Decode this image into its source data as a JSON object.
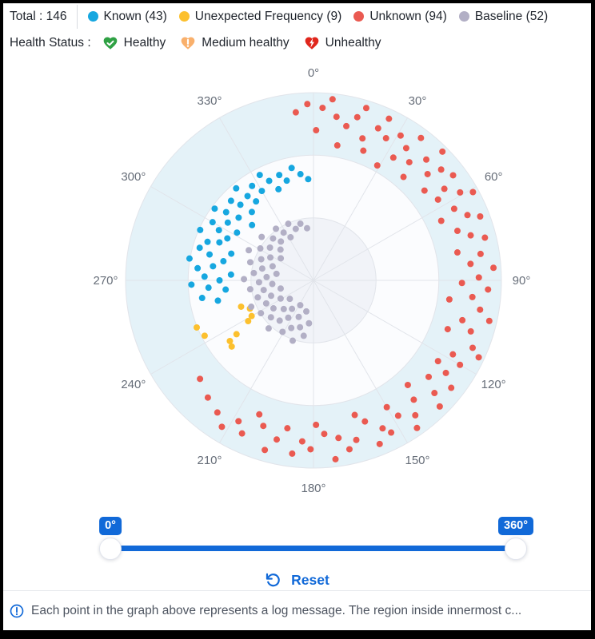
{
  "header": {
    "total_label": "Total : 146",
    "legend": [
      {
        "label": "Known (43)",
        "color": "#16a7e0"
      },
      {
        "label": "Unexpected Frequency (9)",
        "color": "#fcc02e"
      },
      {
        "label": "Unknown (94)",
        "color": "#ea5a51"
      },
      {
        "label": "Baseline (52)",
        "color": "#b2afc5"
      }
    ],
    "health_status_label": "Health Status :",
    "health_items": [
      {
        "label": "Healthy",
        "icon": "heart-check-icon",
        "color": "#2fa144"
      },
      {
        "label": "Medium healthy",
        "icon": "heart-exclamation-icon",
        "color": "#f9b06c"
      },
      {
        "label": "Unhealthy",
        "icon": "heart-bolt-icon",
        "color": "#e0261c"
      }
    ]
  },
  "chart_data": {
    "type": "scatter",
    "coordinate_system": "polar",
    "angle_unit": "degrees clockwise from top",
    "radius_unit": "fraction of outer radius",
    "angle_ticks": [
      "0°",
      "30°",
      "60°",
      "90°",
      "120°",
      "150°",
      "180°",
      "210°",
      "240°",
      "270°",
      "300°",
      "330°"
    ],
    "ring_radii_fractions": [
      0.333,
      0.667,
      1.0
    ],
    "band_colors": [
      "#f1f3f8",
      "#fbfcfe",
      "#e4f2f8"
    ],
    "grid_color": "#e1e4ea",
    "label_color": "#676e79",
    "point_radius_px": 4,
    "series": [
      {
        "name": "Known",
        "count": 43,
        "color": "#16a7e0",
        "points": [
          [
            258,
            0.52
          ],
          [
            261,
            0.6
          ],
          [
            264,
            0.47
          ],
          [
            266,
            0.56
          ],
          [
            268,
            0.65
          ],
          [
            270,
            0.5
          ],
          [
            272,
            0.58
          ],
          [
            274,
            0.44
          ],
          [
            276,
            0.62
          ],
          [
            278,
            0.54
          ],
          [
            280,
            0.67
          ],
          [
            282,
            0.49
          ],
          [
            284,
            0.57
          ],
          [
            286,
            0.63
          ],
          [
            288,
            0.46
          ],
          [
            290,
            0.6
          ],
          [
            292,
            0.54
          ],
          [
            294,
            0.66
          ],
          [
            296,
            0.51
          ],
          [
            298,
            0.57
          ],
          [
            300,
            0.62
          ],
          [
            302,
            0.48
          ],
          [
            304,
            0.55
          ],
          [
            306,
            0.65
          ],
          [
            308,
            0.59
          ],
          [
            310,
            0.52
          ],
          [
            312,
            0.44
          ],
          [
            314,
            0.61
          ],
          [
            316,
            0.56
          ],
          [
            318,
            0.49
          ],
          [
            320,
            0.64
          ],
          [
            322,
            0.57
          ],
          [
            324,
            0.52
          ],
          [
            327,
            0.6
          ],
          [
            330,
            0.55
          ],
          [
            333,
            0.63
          ],
          [
            336,
            0.58
          ],
          [
            339,
            0.52
          ],
          [
            342,
            0.59
          ],
          [
            345,
            0.55
          ],
          [
            349,
            0.61
          ],
          [
            353,
            0.57
          ],
          [
            357,
            0.54
          ]
        ]
      },
      {
        "name": "Unexpected Frequency",
        "count": 9,
        "color": "#fcc02e",
        "points": [
          [
            250,
            0.41
          ],
          [
            246,
            0.37
          ],
          [
            240,
            0.38
          ],
          [
            238,
            0.41
          ],
          [
            248,
            0.67
          ],
          [
            243,
            0.65
          ],
          [
            235,
            0.5
          ],
          [
            234,
            0.55
          ],
          [
            231,
            0.56
          ]
        ]
      },
      {
        "name": "Unknown",
        "count": 94,
        "color": "#ea5a51",
        "points": [
          [
            354,
            0.9
          ],
          [
            358,
            0.94
          ],
          [
            1,
            0.8
          ],
          [
            3,
            0.92
          ],
          [
            6,
            0.97
          ],
          [
            8,
            0.88
          ],
          [
            10,
            0.73
          ],
          [
            12,
            0.84
          ],
          [
            15,
            0.9
          ],
          [
            17,
            0.96
          ],
          [
            19,
            0.8
          ],
          [
            21,
            0.74
          ],
          [
            23,
            0.88
          ],
          [
            25,
            0.95
          ],
          [
            27,
            0.85
          ],
          [
            29,
            0.7
          ],
          [
            31,
            0.9
          ],
          [
            33,
            0.78
          ],
          [
            35,
            0.86
          ],
          [
            37,
            0.95
          ],
          [
            39,
            0.81
          ],
          [
            41,
            0.73
          ],
          [
            43,
            0.88
          ],
          [
            45,
            0.97
          ],
          [
            47,
            0.83
          ],
          [
            49,
            0.9
          ],
          [
            51,
            0.76
          ],
          [
            53,
            0.93
          ],
          [
            55,
            0.85
          ],
          [
            57,
            0.79
          ],
          [
            59,
            0.91
          ],
          [
            61,
            0.97
          ],
          [
            63,
            0.84
          ],
          [
            65,
            0.75
          ],
          [
            67,
            0.89
          ],
          [
            69,
            0.95
          ],
          [
            71,
            0.81
          ],
          [
            74,
            0.87
          ],
          [
            76,
            0.94
          ],
          [
            79,
            0.78
          ],
          [
            81,
            0.9
          ],
          [
            84,
            0.84
          ],
          [
            86,
            0.96
          ],
          [
            89,
            0.88
          ],
          [
            91,
            0.79
          ],
          [
            93,
            0.93
          ],
          [
            96,
            0.85
          ],
          [
            98,
            0.73
          ],
          [
            100,
            0.9
          ],
          [
            103,
            0.96
          ],
          [
            105,
            0.82
          ],
          [
            108,
            0.88
          ],
          [
            110,
            0.76
          ],
          [
            113,
            0.92
          ],
          [
            115,
            0.97
          ],
          [
            118,
            0.84
          ],
          [
            120,
            0.9
          ],
          [
            123,
            0.79
          ],
          [
            125,
            0.86
          ],
          [
            128,
            0.93
          ],
          [
            130,
            0.8
          ],
          [
            133,
            0.88
          ],
          [
            135,
            0.95
          ],
          [
            138,
            0.75
          ],
          [
            140,
            0.83
          ],
          [
            143,
            0.9
          ],
          [
            145,
            0.96
          ],
          [
            148,
            0.85
          ],
          [
            150,
            0.78
          ],
          [
            153,
            0.91
          ],
          [
            155,
            0.87
          ],
          [
            158,
            0.94
          ],
          [
            160,
            0.8
          ],
          [
            163,
            0.75
          ],
          [
            165,
            0.88
          ],
          [
            168,
            0.92
          ],
          [
            171,
            0.85
          ],
          [
            173,
            0.96
          ],
          [
            176,
            0.82
          ],
          [
            179,
            0.77
          ],
          [
            181,
            0.9
          ],
          [
            184,
            0.86
          ],
          [
            187,
            0.93
          ],
          [
            190,
            0.8
          ],
          [
            193,
            0.87
          ],
          [
            196,
            0.94
          ],
          [
            199,
            0.82
          ],
          [
            202,
            0.77
          ],
          [
            205,
            0.9
          ],
          [
            208,
            0.85
          ],
          [
            212,
            0.92
          ],
          [
            216,
            0.87
          ],
          [
            222,
            0.84
          ],
          [
            229,
            0.8
          ]
        ]
      },
      {
        "name": "Baseline",
        "count": 52,
        "color": "#b2afc5",
        "points": [
          [
            186,
            0.23
          ],
          [
            190,
            0.3
          ],
          [
            193,
            0.17
          ],
          [
            196,
            0.26
          ],
          [
            199,
            0.34
          ],
          [
            202,
            0.21
          ],
          [
            205,
            0.28
          ],
          [
            208,
            0.15
          ],
          [
            211,
            0.32
          ],
          [
            214,
            0.24
          ],
          [
            217,
            0.19
          ],
          [
            220,
            0.28
          ],
          [
            223,
            0.35
          ],
          [
            226,
            0.22
          ],
          [
            229,
            0.3
          ],
          [
            232,
            0.16
          ],
          [
            235,
            0.26
          ],
          [
            238,
            0.33
          ],
          [
            241,
            0.2
          ],
          [
            244,
            0.28
          ],
          [
            247,
            0.36
          ],
          [
            250,
            0.24
          ],
          [
            253,
            0.31
          ],
          [
            256,
            0.18
          ],
          [
            259,
            0.27
          ],
          [
            262,
            0.34
          ],
          [
            265,
            0.22
          ],
          [
            268,
            0.29
          ],
          [
            271,
            0.37
          ],
          [
            274,
            0.25
          ],
          [
            277,
            0.32
          ],
          [
            280,
            0.2
          ],
          [
            283,
            0.28
          ],
          [
            286,
            0.35
          ],
          [
            289,
            0.23
          ],
          [
            292,
            0.3
          ],
          [
            295,
            0.38
          ],
          [
            298,
            0.26
          ],
          [
            301,
            0.33
          ],
          [
            304,
            0.21
          ],
          [
            307,
            0.29
          ],
          [
            310,
            0.36
          ],
          [
            313,
            0.24
          ],
          [
            316,
            0.31
          ],
          [
            320,
            0.27
          ],
          [
            324,
            0.34
          ],
          [
            328,
            0.3
          ],
          [
            332,
            0.26
          ],
          [
            336,
            0.33
          ],
          [
            341,
            0.29
          ],
          [
            347,
            0.31
          ],
          [
            353,
            0.28
          ]
        ]
      }
    ]
  },
  "slider": {
    "min_label": "0°",
    "max_label": "360°",
    "min_value": 0,
    "max_value": 360,
    "accent_color": "#1169d8"
  },
  "reset": {
    "label": "Reset"
  },
  "footer": {
    "info_text": "Each point in the graph above represents a log message. The region inside innermost c..."
  }
}
